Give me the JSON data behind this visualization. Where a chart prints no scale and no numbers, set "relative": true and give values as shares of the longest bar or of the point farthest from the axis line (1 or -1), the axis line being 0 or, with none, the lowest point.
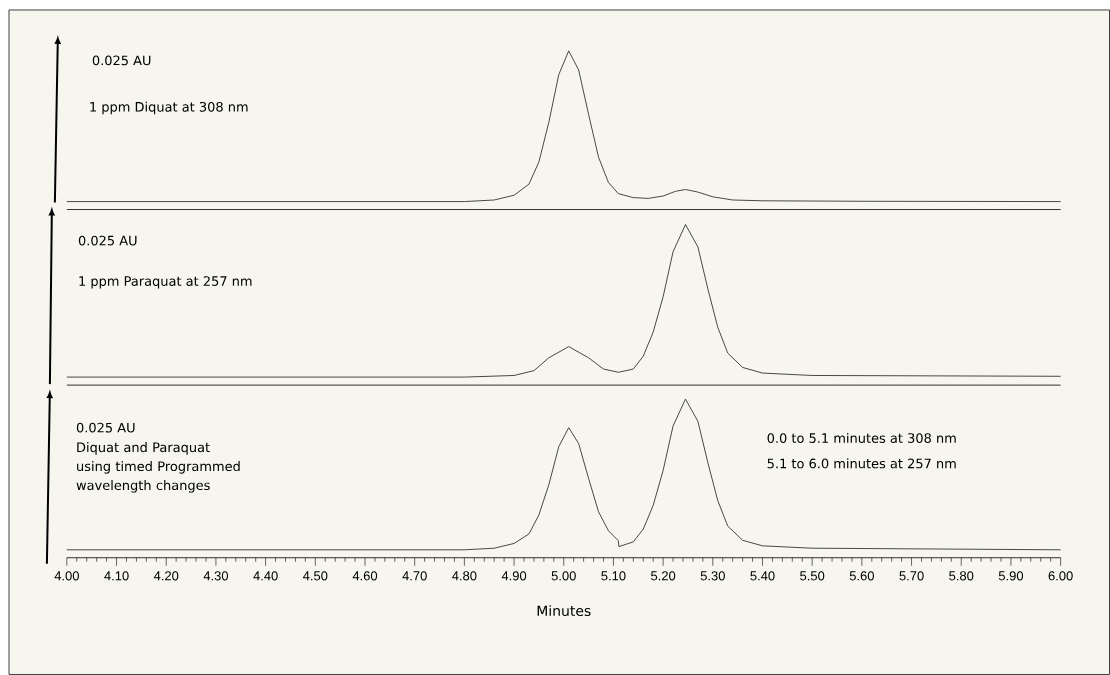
{
  "chart_data": [
    {
      "type": "line",
      "relative": true,
      "x": [
        4.0,
        4.5,
        4.8,
        4.86,
        4.9,
        4.93,
        4.95,
        4.97,
        4.99,
        5.01,
        5.03,
        5.05,
        5.07,
        5.09,
        5.11,
        5.14,
        5.17,
        5.2,
        5.225,
        5.245,
        5.27,
        5.3,
        5.34,
        5.4,
        5.6,
        6.0
      ],
      "xlim": [
        4.0,
        6.0
      ],
      "tick_labels": false,
      "series": [
        {
          "color": "#333333",
          "values": [
            0.05,
            0.05,
            0.05,
            0.06,
            0.09,
            0.16,
            0.3,
            0.55,
            0.85,
            1.0,
            0.88,
            0.6,
            0.33,
            0.17,
            0.1,
            0.075,
            0.07,
            0.085,
            0.115,
            0.126,
            0.11,
            0.08,
            0.06,
            0.055,
            0.052,
            0.05
          ]
        }
      ],
      "annotations": [
        "0.025 AU",
        "1 ppm Diquat at 308 nm"
      ]
    },
    {
      "type": "line",
      "relative": true,
      "x": [
        4.0,
        4.8,
        4.9,
        4.94,
        4.97,
        5.01,
        5.05,
        5.08,
        5.11,
        5.14,
        5.16,
        5.18,
        5.2,
        5.22,
        5.245,
        5.27,
        5.29,
        5.31,
        5.33,
        5.36,
        5.4,
        5.5,
        6.0
      ],
      "xlim": [
        4.0,
        6.0
      ],
      "tick_labels": false,
      "series": [
        {
          "color": "#333333",
          "values": [
            0.05,
            0.05,
            0.06,
            0.09,
            0.17,
            0.24,
            0.17,
            0.1,
            0.08,
            0.1,
            0.18,
            0.33,
            0.55,
            0.83,
            1.0,
            0.86,
            0.6,
            0.36,
            0.2,
            0.11,
            0.075,
            0.06,
            0.055
          ]
        }
      ],
      "annotations": [
        "0.025 AU",
        "1 ppm Paraquat at 257 nm"
      ]
    },
    {
      "type": "line",
      "relative": true,
      "x": [
        4.0,
        4.8,
        4.86,
        4.9,
        4.93,
        4.95,
        4.97,
        4.99,
        5.01,
        5.03,
        5.05,
        5.07,
        5.09,
        5.11,
        5.111,
        5.14,
        5.16,
        5.18,
        5.2,
        5.22,
        5.245,
        5.27,
        5.29,
        5.31,
        5.33,
        5.36,
        5.4,
        5.5,
        6.0
      ],
      "xlim": [
        4.0,
        6.0
      ],
      "tick_labels": "x",
      "xlabel": "Minutes",
      "xticks": [
        {
          "value": 4.0,
          "label": "4.00"
        },
        {
          "value": 4.1,
          "label": "4.10"
        },
        {
          "value": 4.2,
          "label": "4.20"
        },
        {
          "value": 4.3,
          "label": "4.30"
        },
        {
          "value": 4.4,
          "label": "4.40"
        },
        {
          "value": 4.5,
          "label": "4.50"
        },
        {
          "value": 4.6,
          "label": "4.60"
        },
        {
          "value": 4.7,
          "label": "4.70"
        },
        {
          "value": 4.8,
          "label": "4.80"
        },
        {
          "value": 4.9,
          "label": "4.90"
        },
        {
          "value": 5.0,
          "label": "5.00"
        },
        {
          "value": 5.1,
          "label": "5.10"
        },
        {
          "value": 5.2,
          "label": "5.20"
        },
        {
          "value": 5.3,
          "label": "5.30"
        },
        {
          "value": 5.4,
          "label": "5.40"
        },
        {
          "value": 5.5,
          "label": "5.50"
        },
        {
          "value": 5.6,
          "label": "5.60"
        },
        {
          "value": 5.7,
          "label": "5.70"
        },
        {
          "value": 5.8,
          "label": "5.80"
        },
        {
          "value": 5.9,
          "label": "5.90"
        },
        {
          "value": 6.0,
          "label": "6.00"
        }
      ],
      "series": [
        {
          "color": "#333333",
          "values": [
            0.05,
            0.05,
            0.06,
            0.09,
            0.15,
            0.27,
            0.46,
            0.7,
            0.82,
            0.72,
            0.5,
            0.29,
            0.17,
            0.107,
            0.07,
            0.1,
            0.18,
            0.33,
            0.55,
            0.83,
            1.0,
            0.86,
            0.6,
            0.36,
            0.2,
            0.11,
            0.075,
            0.06,
            0.05
          ]
        }
      ],
      "annotations": [
        "0.025 AU",
        "Diquat and Paraquat using timed Programmed wavelength changes",
        "0.0 to 5.1 minutes at 308 nm",
        "5.1 to 6.0 minutes at 257 nm"
      ]
    }
  ]
}
